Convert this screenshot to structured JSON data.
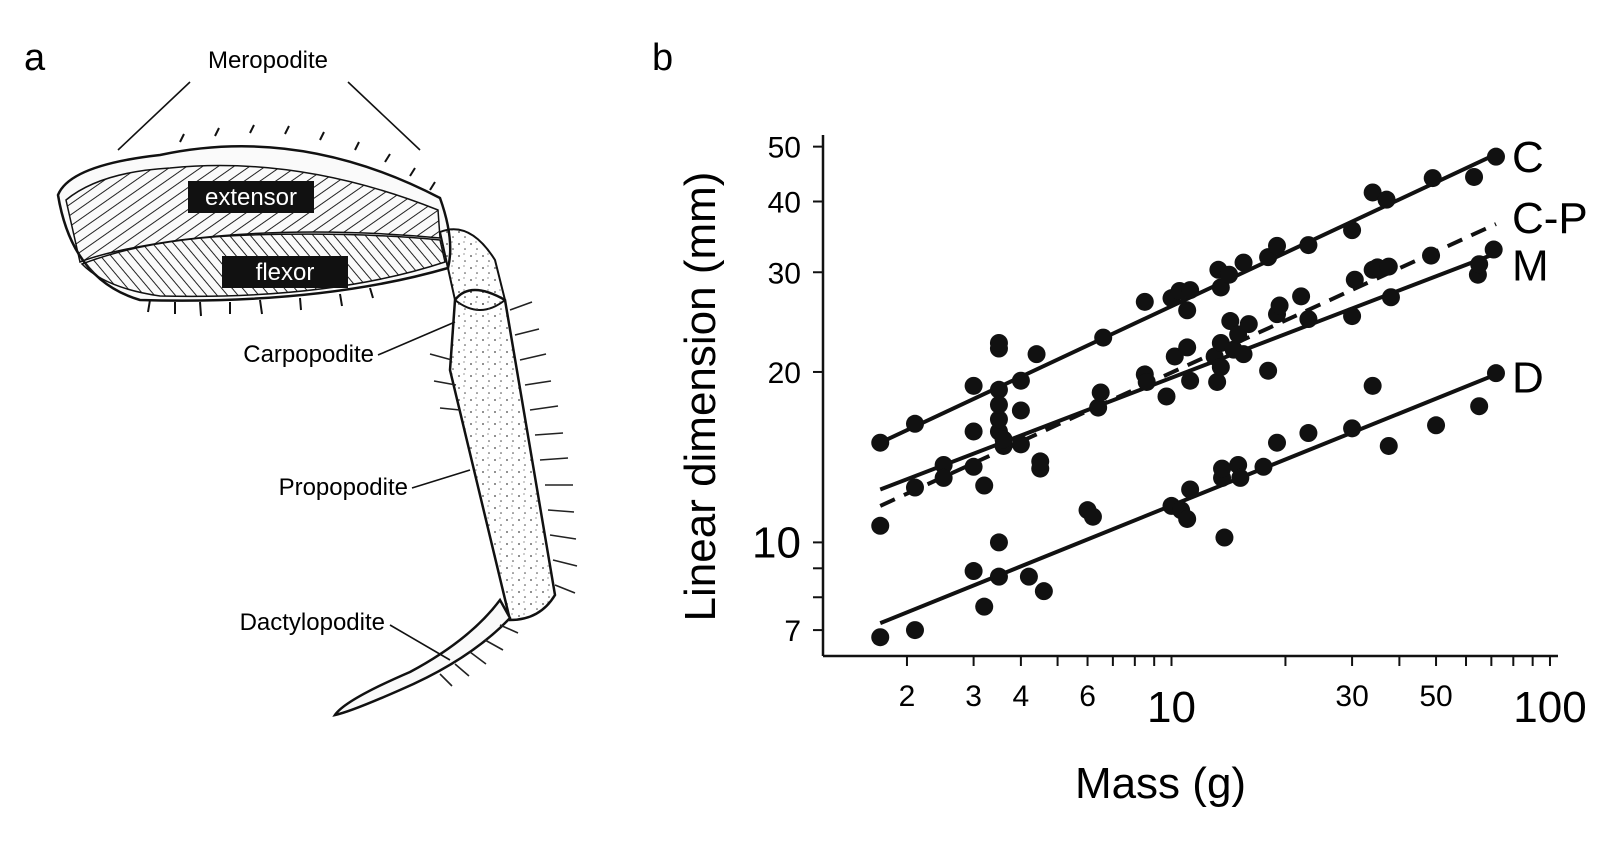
{
  "panel_a": {
    "letter": "a",
    "labels": {
      "meropodite": "Meropodite",
      "extensor": "extensor",
      "flexor": "flexor",
      "carpopodite": "Carpopodite",
      "propopodite": "Propopodite",
      "dactylopodite": "Dactylopodite"
    }
  },
  "panel_b": {
    "letter": "b"
  },
  "chart_data": {
    "type": "scatter",
    "xlabel": "Mass (g)",
    "ylabel": "Linear dimension (mm)",
    "xscale": "log",
    "yscale": "log",
    "xlim": [
      1.2,
      105
    ],
    "ylim": [
      6.3,
      52
    ],
    "x_ticks": [
      {
        "value": 2,
        "label": "2",
        "big": false
      },
      {
        "value": 3,
        "label": "3",
        "big": false
      },
      {
        "value": 4,
        "label": "4",
        "big": false
      },
      {
        "value": 6,
        "label": "6",
        "big": false
      },
      {
        "value": 10,
        "label": "10",
        "big": true
      },
      {
        "value": 30,
        "label": "30",
        "big": false
      },
      {
        "value": 50,
        "label": "50",
        "big": false
      },
      {
        "value": 100,
        "label": "100",
        "big": true
      }
    ],
    "y_ticks": [
      {
        "value": 7,
        "label": "7",
        "big": false
      },
      {
        "value": 10,
        "label": "10",
        "big": true
      },
      {
        "value": 20,
        "label": "20",
        "big": false
      },
      {
        "value": 30,
        "label": "30",
        "big": false
      },
      {
        "value": 40,
        "label": "40",
        "big": false
      },
      {
        "value": 50,
        "label": "50",
        "big": false
      }
    ],
    "series": [
      {
        "name": "C",
        "fit": {
          "x": [
            1.7,
            72
          ],
          "y": [
            15.0,
            48.5
          ],
          "style": "solid"
        },
        "points": [
          [
            1.7,
            15.0
          ],
          [
            2.1,
            16.2
          ],
          [
            3.0,
            18.9
          ],
          [
            3.5,
            22.0
          ],
          [
            3.5,
            22.5
          ],
          [
            3.5,
            18.6
          ],
          [
            4.0,
            19.3
          ],
          [
            4.4,
            21.5
          ],
          [
            6.6,
            23.0
          ],
          [
            8.5,
            26.6
          ],
          [
            10.0,
            27.0
          ],
          [
            10.5,
            27.8
          ],
          [
            11.2,
            27.9
          ],
          [
            11.0,
            25.7
          ],
          [
            13.3,
            30.3
          ],
          [
            13.5,
            28.2
          ],
          [
            14.2,
            29.7
          ],
          [
            15.5,
            31.2
          ],
          [
            18.0,
            31.9
          ],
          [
            19.0,
            33.4
          ],
          [
            23.0,
            33.5
          ],
          [
            30.0,
            35.6
          ],
          [
            34.0,
            41.5
          ],
          [
            37.0,
            40.3
          ],
          [
            49.0,
            44.0
          ],
          [
            63.0,
            44.2
          ],
          [
            72.0,
            48.0
          ]
        ]
      },
      {
        "name": "C-P",
        "fit": {
          "x": [
            1.7,
            72
          ],
          "y": [
            11.6,
            36.5
          ],
          "style": "dashed"
        },
        "points": []
      },
      {
        "name": "M",
        "fit": {
          "x": [
            1.7,
            72
          ],
          "y": [
            12.4,
            32.4
          ],
          "style": "solid"
        },
        "points": [
          [
            1.7,
            10.7
          ],
          [
            2.1,
            12.5
          ],
          [
            2.5,
            13.7
          ],
          [
            2.5,
            13.0
          ],
          [
            3.0,
            15.7
          ],
          [
            3.0,
            13.6
          ],
          [
            3.2,
            12.6
          ],
          [
            3.5,
            15.7
          ],
          [
            3.5,
            16.5
          ],
          [
            3.5,
            17.5
          ],
          [
            3.6,
            14.8
          ],
          [
            3.6,
            15.2
          ],
          [
            4.0,
            14.9
          ],
          [
            4.0,
            17.1
          ],
          [
            4.5,
            13.5
          ],
          [
            4.5,
            13.9
          ],
          [
            6.0,
            11.4
          ],
          [
            6.2,
            11.1
          ],
          [
            6.4,
            17.3
          ],
          [
            6.5,
            18.4
          ],
          [
            8.5,
            19.8
          ],
          [
            8.6,
            19.2
          ],
          [
            9.7,
            18.1
          ],
          [
            10.2,
            21.3
          ],
          [
            11.0,
            22.1
          ],
          [
            11.2,
            19.3
          ],
          [
            13.0,
            21.3
          ],
          [
            13.2,
            19.2
          ],
          [
            13.5,
            20.4
          ],
          [
            13.5,
            22.5
          ],
          [
            14.3,
            24.6
          ],
          [
            14.6,
            21.9
          ],
          [
            15.0,
            23.3
          ],
          [
            15.5,
            21.5
          ],
          [
            16.0,
            24.3
          ],
          [
            18.0,
            20.1
          ],
          [
            19.0,
            25.3
          ],
          [
            19.3,
            26.2
          ],
          [
            22.0,
            27.2
          ],
          [
            23.0,
            24.8
          ],
          [
            30.0,
            25.1
          ],
          [
            30.5,
            29.1
          ],
          [
            34.0,
            30.3
          ],
          [
            35.0,
            30.6
          ],
          [
            37.5,
            30.7
          ],
          [
            38.0,
            27.1
          ],
          [
            48.5,
            32.1
          ],
          [
            64.5,
            29.7
          ],
          [
            65.0,
            31.0
          ],
          [
            71.0,
            32.9
          ]
        ]
      },
      {
        "name": "D",
        "fit": {
          "x": [
            1.7,
            72
          ],
          "y": [
            7.2,
            19.8
          ],
          "style": "solid"
        },
        "points": [
          [
            1.7,
            6.8
          ],
          [
            2.1,
            7.0
          ],
          [
            3.0,
            8.9
          ],
          [
            3.2,
            7.7
          ],
          [
            3.5,
            10.0
          ],
          [
            3.5,
            8.7
          ],
          [
            4.2,
            8.7
          ],
          [
            4.6,
            8.2
          ],
          [
            10.0,
            11.6
          ],
          [
            10.6,
            11.4
          ],
          [
            11.0,
            11.0
          ],
          [
            11.2,
            12.4
          ],
          [
            13.6,
            13.0
          ],
          [
            13.6,
            13.5
          ],
          [
            13.8,
            10.2
          ],
          [
            15.0,
            13.7
          ],
          [
            15.2,
            13.0
          ],
          [
            17.5,
            13.6
          ],
          [
            19.0,
            15.0
          ],
          [
            23.0,
            15.6
          ],
          [
            30.0,
            15.9
          ],
          [
            34.0,
            18.9
          ],
          [
            37.5,
            14.8
          ],
          [
            50.0,
            16.1
          ],
          [
            65.0,
            17.4
          ],
          [
            72.0,
            19.9
          ]
        ]
      }
    ]
  }
}
